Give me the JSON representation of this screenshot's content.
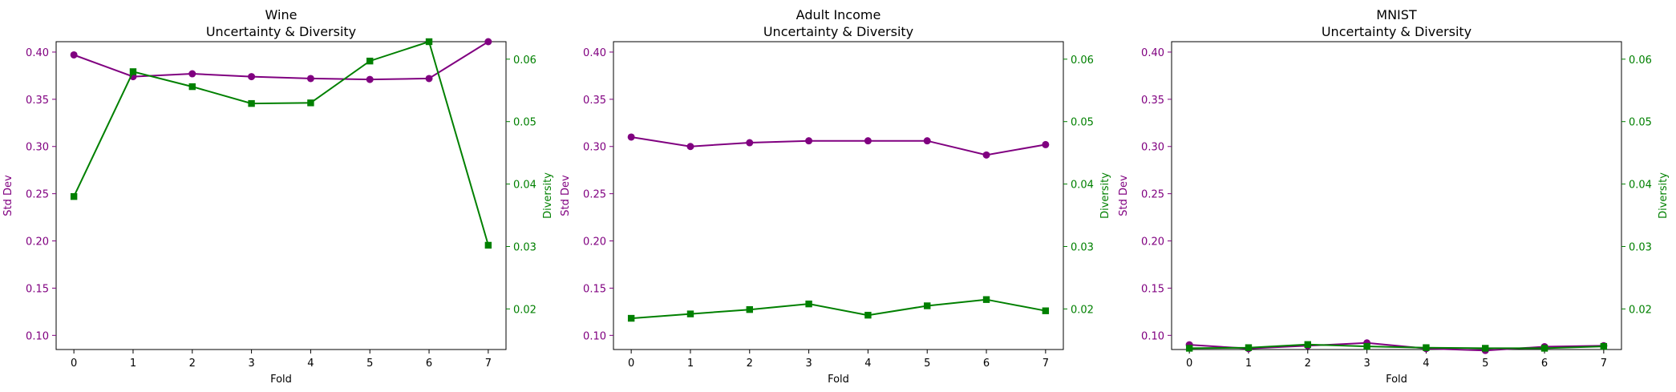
{
  "chart_data": [
    {
      "type": "line",
      "title_line1": "Wine",
      "title_line2": "Uncertainty & Diversity",
      "xlabel": "Fold",
      "ylabel_left": "Std Dev",
      "ylabel_right": "Diversity",
      "x": [
        0,
        1,
        2,
        3,
        4,
        5,
        6,
        7
      ],
      "x_ticks": [
        "0",
        "1",
        "2",
        "3",
        "4",
        "5",
        "6",
        "7"
      ],
      "left_ticks": [
        "0.10",
        "0.15",
        "0.20",
        "0.25",
        "0.30",
        "0.35",
        "0.40"
      ],
      "right_ticks": [
        "0.02",
        "0.03",
        "0.04",
        "0.05",
        "0.06"
      ],
      "ylim_left": [
        0.085,
        0.411
      ],
      "ylim_right": [
        0.0135,
        0.0628
      ],
      "series": [
        {
          "axis": "left",
          "marker": "circle",
          "values": [
            0.397,
            0.374,
            0.377,
            0.374,
            0.372,
            0.371,
            0.372,
            0.411
          ]
        },
        {
          "axis": "right",
          "marker": "square",
          "values": [
            0.038,
            0.058,
            0.0556,
            0.0529,
            0.053,
            0.0597,
            0.0628,
            0.0302
          ]
        }
      ],
      "grid": false
    },
    {
      "type": "line",
      "title_line1": "Adult Income",
      "title_line2": "Uncertainty & Diversity",
      "xlabel": "Fold",
      "ylabel_left": "Std Dev",
      "ylabel_right": "Diversity",
      "x": [
        0,
        1,
        2,
        3,
        4,
        5,
        6,
        7
      ],
      "x_ticks": [
        "0",
        "1",
        "2",
        "3",
        "4",
        "5",
        "6",
        "7"
      ],
      "left_ticks": [
        "0.10",
        "0.15",
        "0.20",
        "0.25",
        "0.30",
        "0.35",
        "0.40"
      ],
      "right_ticks": [
        "0.02",
        "0.03",
        "0.04",
        "0.05",
        "0.06"
      ],
      "ylim_left": [
        0.085,
        0.411
      ],
      "ylim_right": [
        0.0135,
        0.0628
      ],
      "series": [
        {
          "axis": "left",
          "marker": "circle",
          "values": [
            0.31,
            0.3,
            0.304,
            0.306,
            0.306,
            0.306,
            0.291,
            0.302
          ]
        },
        {
          "axis": "right",
          "marker": "square",
          "values": [
            0.0185,
            0.0192,
            0.0199,
            0.0208,
            0.019,
            0.0205,
            0.0215,
            0.0197
          ]
        }
      ],
      "grid": false
    },
    {
      "type": "line",
      "title_line1": "MNIST",
      "title_line2": "Uncertainty & Diversity",
      "xlabel": "Fold",
      "ylabel_left": "Std Dev",
      "ylabel_right": "Diversity",
      "x": [
        0,
        1,
        2,
        3,
        4,
        5,
        6,
        7
      ],
      "x_ticks": [
        "0",
        "1",
        "2",
        "3",
        "4",
        "5",
        "6",
        "7"
      ],
      "left_ticks": [
        "0.10",
        "0.15",
        "0.20",
        "0.25",
        "0.30",
        "0.35",
        "0.40"
      ],
      "right_ticks": [
        "0.02",
        "0.03",
        "0.04",
        "0.05",
        "0.06"
      ],
      "ylim_left": [
        0.085,
        0.411
      ],
      "ylim_right": [
        0.0135,
        0.0628
      ],
      "series": [
        {
          "axis": "left",
          "marker": "circle",
          "values": [
            0.09,
            0.086,
            0.089,
            0.092,
            0.086,
            0.084,
            0.088,
            0.089
          ]
        },
        {
          "axis": "right",
          "marker": "square",
          "values": [
            0.0137,
            0.0138,
            0.0143,
            0.014,
            0.0138,
            0.0137,
            0.0137,
            0.014
          ]
        }
      ],
      "grid": false
    }
  ],
  "colors": {
    "left_axis": "#800080",
    "right_axis": "#008000",
    "frame": "#000000",
    "text": "#000000"
  }
}
